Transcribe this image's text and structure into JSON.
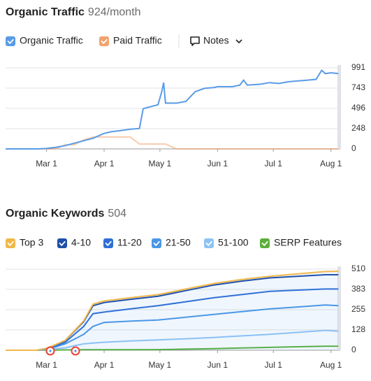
{
  "chart_data": [
    {
      "type": "line",
      "title": "Organic Traffic",
      "subtitle": "924/month",
      "notes": "Notes",
      "x": [
        -22,
        -5,
        0,
        5,
        10,
        15,
        20,
        25,
        31,
        35,
        40,
        45,
        50,
        52,
        55,
        60,
        62,
        63,
        64,
        70,
        75,
        80,
        85,
        90,
        92,
        100,
        104,
        106,
        108,
        115,
        120,
        125,
        130,
        135,
        140,
        145,
        148,
        150,
        153,
        157
      ],
      "series": [
        {
          "name": "Organic Traffic",
          "color": "#5a9be6",
          "values": [
            0,
            0,
            5,
            20,
            40,
            70,
            100,
            130,
            190,
            210,
            225,
            240,
            250,
            490,
            510,
            540,
            700,
            810,
            560,
            560,
            580,
            700,
            740,
            750,
            760,
            760,
            780,
            840,
            780,
            790,
            810,
            800,
            820,
            830,
            840,
            850,
            960,
            920,
            930,
            920
          ]
        },
        {
          "name": "Paid Traffic",
          "color": "#f2a36e",
          "values": [
            0,
            0,
            0,
            0,
            50,
            50,
            110,
            145,
            145,
            145,
            145,
            145,
            60,
            60,
            60,
            60,
            60,
            60,
            60,
            0,
            0,
            0,
            0,
            0,
            0,
            0,
            0,
            0,
            0,
            0,
            0,
            0,
            0,
            0,
            0,
            0,
            0,
            0,
            0,
            0
          ]
        }
      ],
      "xlim": [
        -22,
        158
      ],
      "xticks": [
        {
          "value": 0,
          "label": "Mar 1"
        },
        {
          "value": 31,
          "label": "Apr 1"
        },
        {
          "value": 61,
          "label": "May 1"
        },
        {
          "value": 92,
          "label": "Jun 1"
        },
        {
          "value": 122,
          "label": "Jul 1"
        },
        {
          "value": 153,
          "label": "Aug 1"
        }
      ],
      "ylim": [
        0,
        991
      ],
      "yticks": [
        0,
        248,
        496,
        743,
        991
      ],
      "grid": true
    },
    {
      "type": "area",
      "stacked": true,
      "title": "Organic Keywords",
      "subtitle": "504",
      "x": [
        -22,
        -5,
        0,
        5,
        10,
        15,
        20,
        25,
        31,
        45,
        60,
        75,
        90,
        105,
        120,
        135,
        150,
        157
      ],
      "series": [
        {
          "name": "Top 3",
          "color": "#f0b84a",
          "values": [
            0,
            0,
            0,
            1,
            2,
            3,
            5,
            10,
            10,
            10,
            10,
            10,
            10,
            10,
            10,
            15,
            20,
            22
          ]
        },
        {
          "name": "4-10",
          "color": "#1f4fa8",
          "values": [
            0,
            0,
            2,
            7,
            10,
            20,
            30,
            50,
            60,
            60,
            60,
            70,
            80,
            85,
            85,
            87,
            90,
            90
          ]
        },
        {
          "name": "11-20",
          "color": "#2f6fd6",
          "values": [
            0,
            0,
            2,
            6,
            10,
            30,
            50,
            80,
            65,
            77,
            90,
            97,
            105,
            107,
            110,
            106,
            100,
            105
          ]
        },
        {
          "name": "21-50",
          "color": "#4a97e8",
          "values": [
            0,
            0,
            3,
            12,
            25,
            42,
            60,
            105,
            125,
            125,
            125,
            136,
            145,
            153,
            160,
            160,
            160,
            160
          ]
        },
        {
          "name": "51-100",
          "color": "#8ec3f5",
          "values": [
            0,
            0,
            5,
            10,
            15,
            28,
            40,
            45,
            50,
            58,
            65,
            72,
            80,
            90,
            100,
            112,
            125,
            120
          ]
        },
        {
          "name": "SERP Features",
          "color": "#5ab03a",
          "stacked": false,
          "values": [
            0,
            0,
            1,
            1,
            2,
            2,
            3,
            3,
            3,
            3,
            4,
            7,
            10,
            14,
            18,
            22,
            25,
            25
          ]
        }
      ],
      "xlim": [
        -22,
        158
      ],
      "xticks": [
        {
          "value": 0,
          "label": "Mar 1"
        },
        {
          "value": 31,
          "label": "Apr 1"
        },
        {
          "value": 61,
          "label": "May 1"
        },
        {
          "value": 92,
          "label": "Jun 1"
        },
        {
          "value": 122,
          "label": "Jul 1"
        },
        {
          "value": 153,
          "label": "Aug 1"
        }
      ],
      "ylim": [
        0,
        510
      ],
      "yticks": [
        0,
        128,
        255,
        383,
        510
      ],
      "grid": true
    }
  ]
}
